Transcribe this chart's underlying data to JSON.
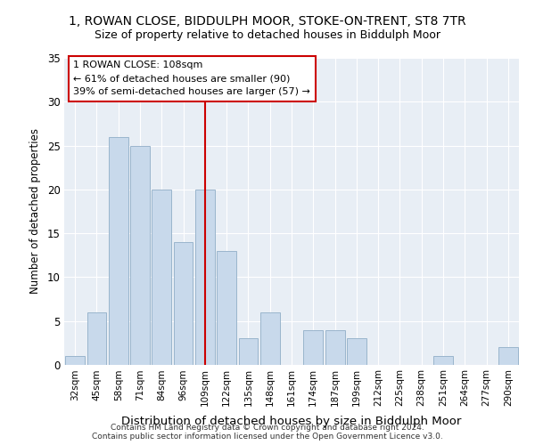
{
  "title1": "1, ROWAN CLOSE, BIDDULPH MOOR, STOKE-ON-TRENT, ST8 7TR",
  "title2": "Size of property relative to detached houses in Biddulph Moor",
  "xlabel": "Distribution of detached houses by size in Biddulph Moor",
  "ylabel": "Number of detached properties",
  "categories": [
    "32sqm",
    "45sqm",
    "58sqm",
    "71sqm",
    "84sqm",
    "96sqm",
    "109sqm",
    "122sqm",
    "135sqm",
    "148sqm",
    "161sqm",
    "174sqm",
    "187sqm",
    "199sqm",
    "212sqm",
    "225sqm",
    "238sqm",
    "251sqm",
    "264sqm",
    "277sqm",
    "290sqm"
  ],
  "values": [
    1,
    6,
    26,
    25,
    20,
    14,
    20,
    13,
    3,
    6,
    0,
    4,
    4,
    3,
    0,
    0,
    0,
    1,
    0,
    0,
    2
  ],
  "bar_color": "#c8d9eb",
  "bar_edge_color": "#9ab5cc",
  "annotation_title": "1 ROWAN CLOSE: 108sqm",
  "annotation_line1": "← 61% of detached houses are smaller (90)",
  "annotation_line2": "39% of semi-detached houses are larger (57) →",
  "vline_color": "#cc0000",
  "box_edge_color": "#cc0000",
  "ylim": [
    0,
    35
  ],
  "yticks": [
    0,
    5,
    10,
    15,
    20,
    25,
    30,
    35
  ],
  "bg_color": "#e8eef5",
  "footer1": "Contains HM Land Registry data © Crown copyright and database right 2024.",
  "footer2": "Contains public sector information licensed under the Open Government Licence v3.0."
}
